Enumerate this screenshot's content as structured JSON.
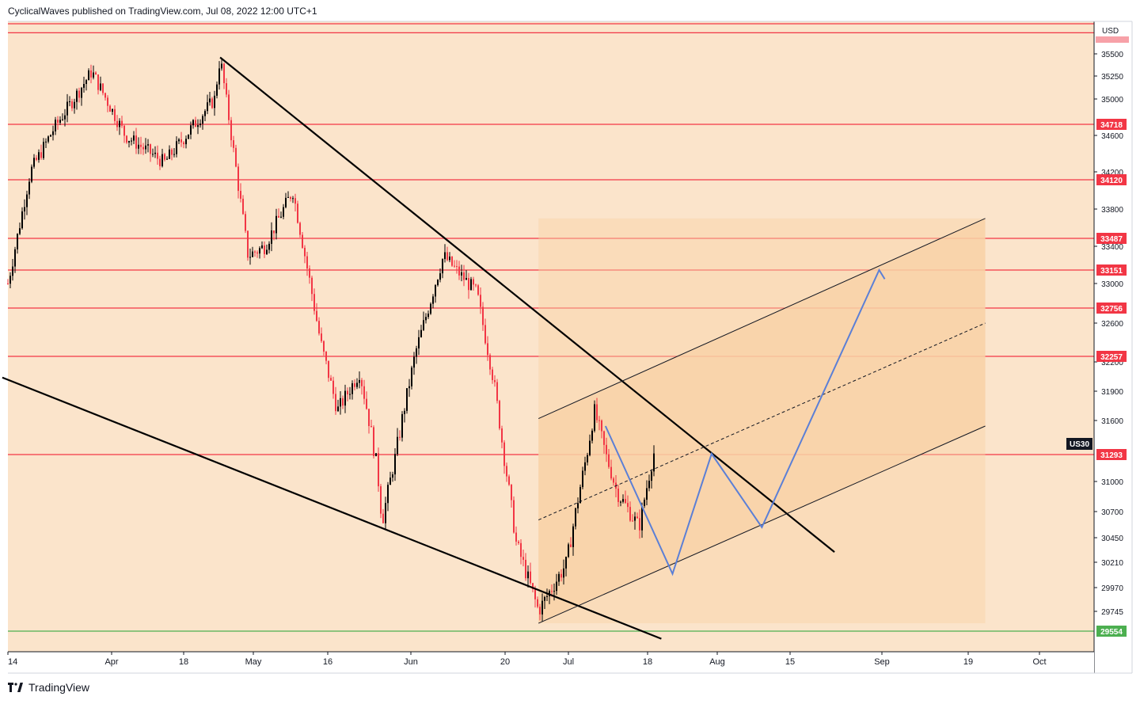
{
  "header": {
    "attribution": "CyclicalWaves published on TradingView.com, Jul 08, 2022 12:00 UTC+1"
  },
  "footer": {
    "brand": "TradingView",
    "logo_icon": "tradingview-logo-icon"
  },
  "colors": {
    "background": "#fbe4cb",
    "level_line": "#f23645",
    "support_line": "#4caf50",
    "trendline": "#000000",
    "channel_fill": "#f9d2a6",
    "projection_path": "#5b7fd6",
    "candle_up": "#000000",
    "candle_down": "#f23645"
  },
  "chart_data": {
    "type": "candlestick",
    "symbol": "US30",
    "currency": "USD",
    "y_axis": {
      "ticks": [
        35500,
        35250,
        35000,
        34600,
        34200,
        33800,
        33400,
        33000,
        32600,
        32200,
        31900,
        31600,
        31000,
        30700,
        30450,
        30210,
        29970,
        29745
      ]
    },
    "x_axis": {
      "ticks": [
        "14",
        "Apr",
        "18",
        "May",
        "16",
        "Jun",
        "20",
        "Jul",
        "18",
        "Aug",
        "15",
        "Sep",
        "19",
        "Oct"
      ]
    },
    "horizontal_levels": [
      {
        "value": 35900,
        "label": ""
      },
      {
        "value": 35780,
        "label": ""
      },
      {
        "value": 34718,
        "label": "34718"
      },
      {
        "value": 34120,
        "label": "34120"
      },
      {
        "value": 33487,
        "label": "33487"
      },
      {
        "value": 33151,
        "label": "33151"
      },
      {
        "value": 32756,
        "label": "32756"
      },
      {
        "value": 32257,
        "label": "32257"
      },
      {
        "value": 31293,
        "label": "31293"
      },
      {
        "value": 29554,
        "label": "29554",
        "color": "support"
      }
    ],
    "current_price_label": "US30",
    "price_path": [
      {
        "date": "2022-03-14",
        "price": 33000
      },
      {
        "date": "2022-03-18",
        "price": 34200
      },
      {
        "date": "2022-03-22",
        "price": 34650
      },
      {
        "date": "2022-03-29",
        "price": 35300
      },
      {
        "date": "2022-04-04",
        "price": 34600
      },
      {
        "date": "2022-04-11",
        "price": 34300
      },
      {
        "date": "2022-04-20",
        "price": 35000
      },
      {
        "date": "2022-04-21",
        "price": 35460
      },
      {
        "date": "2022-04-26",
        "price": 33300
      },
      {
        "date": "2022-04-29",
        "price": 33400
      },
      {
        "date": "2022-05-04",
        "price": 34000
      },
      {
        "date": "2022-05-09",
        "price": 32400
      },
      {
        "date": "2022-05-12",
        "price": 31700
      },
      {
        "date": "2022-05-16",
        "price": 32100
      },
      {
        "date": "2022-05-19",
        "price": 31200
      },
      {
        "date": "2022-05-20",
        "price": 30600
      },
      {
        "date": "2022-05-26",
        "price": 32300
      },
      {
        "date": "2022-05-31",
        "price": 33300
      },
      {
        "date": "2022-06-06",
        "price": 32900
      },
      {
        "date": "2022-06-09",
        "price": 32000
      },
      {
        "date": "2022-06-10",
        "price": 31600
      },
      {
        "date": "2022-06-13",
        "price": 30400
      },
      {
        "date": "2022-06-17",
        "price": 29750
      },
      {
        "date": "2022-06-22",
        "price": 30200
      },
      {
        "date": "2022-06-27",
        "price": 31700
      },
      {
        "date": "2022-06-28",
        "price": 31500
      },
      {
        "date": "2022-07-01",
        "price": 30900
      },
      {
        "date": "2022-07-05",
        "price": 30550
      },
      {
        "date": "2022-07-08",
        "price": 31400
      }
    ],
    "drawings": {
      "descending_trendline": {
        "from": {
          "date": "2022-04-21",
          "price": 35460
        },
        "to": {
          "date": "2022-08-09",
          "price": 30310
        }
      },
      "lower_trendline": {
        "from": {
          "date": "2022-03-13",
          "price": 32040
        },
        "to": {
          "date": "2022-07-09",
          "price": 29480
        }
      },
      "channel": {
        "upper": {
          "from": {
            "date": "2022-06-17",
            "price": 31620
          },
          "to": {
            "date": "2022-09-05",
            "price": 33700
          }
        },
        "lower": {
          "from": {
            "date": "2022-06-17",
            "price": 29630
          },
          "to": {
            "date": "2022-09-05",
            "price": 31550
          }
        },
        "mid": {
          "from": {
            "date": "2022-06-17",
            "price": 30620
          },
          "to": {
            "date": "2022-09-05",
            "price": 32600
          }
        }
      },
      "projection_path": [
        {
          "date": "2022-06-29",
          "price": 31550
        },
        {
          "date": "2022-07-11",
          "price": 30100
        },
        {
          "date": "2022-07-18",
          "price": 31300
        },
        {
          "date": "2022-07-27",
          "price": 30550
        },
        {
          "date": "2022-08-17",
          "price": 33151
        },
        {
          "date": "2022-08-18",
          "price": 33050
        }
      ]
    }
  }
}
